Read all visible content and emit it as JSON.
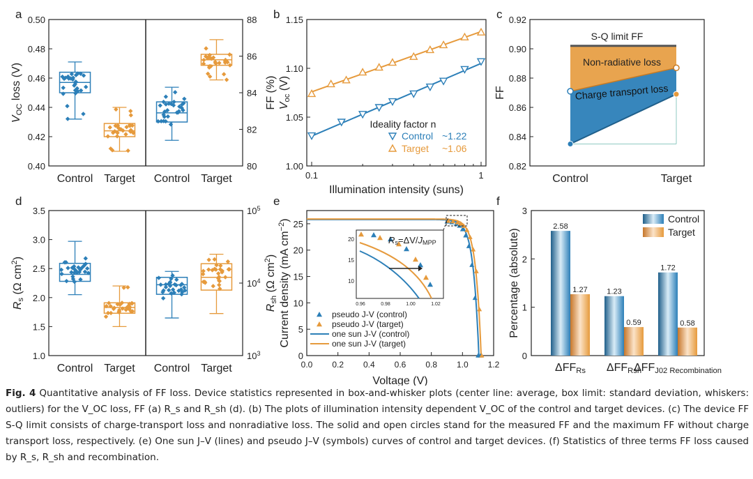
{
  "colors": {
    "control": "#2C7FB8",
    "target": "#E69A3C",
    "loss_nr": "#E69A3C",
    "loss_ct": "#2C7FB8",
    "sq": "#555555"
  },
  "panels": {
    "a": "a",
    "b": "b",
    "c": "c",
    "d": "d",
    "e": "e",
    "f": "f"
  },
  "chart_data": [
    {
      "id": "a",
      "type": "box",
      "ylabel_left": "V_OC loss (V)",
      "ylabel_right": "FF (%)",
      "ylim_left": [
        0.4,
        0.5
      ],
      "yticks_left": [
        "0.40",
        "0.42",
        "0.44",
        "0.46",
        "0.48",
        "0.50"
      ],
      "ylim_right": [
        80,
        88
      ],
      "yticks_right": [
        "80",
        "82",
        "84",
        "86",
        "88"
      ],
      "categories": [
        "Control",
        "Target",
        "Control",
        "Target"
      ],
      "boxes": [
        {
          "axis": "left",
          "group": "control",
          "mean": 0.457,
          "q1": 0.45,
          "q3": 0.464,
          "wlo": 0.432,
          "whi": 0.471
        },
        {
          "axis": "left",
          "group": "target",
          "mean": 0.424,
          "q1": 0.42,
          "q3": 0.429,
          "wlo": 0.41,
          "whi": 0.44
        },
        {
          "axis": "right",
          "group": "control",
          "mean": 82.9,
          "q1": 82.4,
          "q3": 83.5,
          "wlo": 81.4,
          "whi": 84.3
        },
        {
          "axis": "right",
          "group": "target",
          "mean": 85.8,
          "q1": 85.5,
          "q3": 86.1,
          "wlo": 84.7,
          "whi": 86.9
        }
      ]
    },
    {
      "id": "b",
      "type": "scatter+line",
      "xlabel": "Illumination intensity (suns)",
      "ylabel": "V_oc (V)",
      "xscale": "log",
      "xlim": [
        0.1,
        1
      ],
      "xticks": [
        "0.1",
        "1"
      ],
      "ylim": [
        1.0,
        1.15
      ],
      "yticks": [
        "1.00",
        "1.05",
        "1.10",
        "1.15"
      ],
      "legend_title": "Ideality factor n",
      "series": [
        {
          "name": "Control",
          "value_label": "~1.22",
          "group": "control",
          "marker": "triangle-down",
          "x": [
            0.1,
            0.15,
            0.2,
            0.25,
            0.3,
            0.4,
            0.5,
            0.6,
            0.8,
            1.0
          ],
          "y": [
            1.031,
            1.045,
            1.053,
            1.06,
            1.066,
            1.074,
            1.081,
            1.087,
            1.099,
            1.107
          ]
        },
        {
          "name": "Target",
          "value_label": "~1.06",
          "group": "target",
          "marker": "triangle-up",
          "x": [
            0.1,
            0.13,
            0.16,
            0.2,
            0.25,
            0.3,
            0.4,
            0.5,
            0.6,
            0.8,
            1.0
          ],
          "y": [
            1.074,
            1.084,
            1.088,
            1.096,
            1.101,
            1.106,
            1.112,
            1.119,
            1.124,
            1.132,
            1.137
          ]
        }
      ]
    },
    {
      "id": "c",
      "type": "area",
      "ylabel": "FF",
      "ylim": [
        0.82,
        0.92
      ],
      "yticks": [
        "0.82",
        "0.84",
        "0.86",
        "0.88",
        "0.90",
        "0.92"
      ],
      "categories": [
        "Control",
        "Target"
      ],
      "sq_limit": 0.902,
      "sq_label": "S-Q limit FF",
      "max_ff": [
        0.871,
        0.887
      ],
      "measured_ff": [
        0.835,
        0.869
      ],
      "labels": {
        "nonrad": "Non-radiative loss",
        "ct": "Charge transport loss"
      }
    },
    {
      "id": "d",
      "type": "box",
      "ylabel_left": "R_s (Ω cm²)",
      "ylabel_right": "R_sh (Ω cm²)",
      "ylim_left": [
        1.0,
        3.5
      ],
      "yticks_left": [
        "1.0",
        "1.5",
        "2.0",
        "2.5",
        "3.0",
        "3.5"
      ],
      "yscale_right": "log",
      "ylim_right": [
        1000,
        100000
      ],
      "yticks_right": [
        "10^3",
        "10^4",
        "10^5"
      ],
      "categories": [
        "Control",
        "Target",
        "Control",
        "Target"
      ],
      "boxes": [
        {
          "axis": "left",
          "group": "control",
          "mean": 2.4,
          "q1": 2.28,
          "q3": 2.59,
          "wlo": 2.05,
          "whi": 2.97
        },
        {
          "axis": "left",
          "group": "target",
          "mean": 1.83,
          "q1": 1.73,
          "q3": 1.91,
          "wlo": 1.5,
          "whi": 2.2
        },
        {
          "axis": "right",
          "group": "control",
          "mean": 9500,
          "q1": 7000,
          "q3": 12000,
          "wlo": 3300,
          "whi": 14500
        },
        {
          "axis": "right",
          "group": "target",
          "mean": 12000,
          "q1": 8000,
          "q3": 18500,
          "wlo": 3800,
          "whi": 25000
        }
      ]
    },
    {
      "id": "e",
      "type": "line+scatter",
      "xlabel": "Voltage (V)",
      "ylabel": "Current density (mA cm⁻²)",
      "xlim": [
        0,
        1.2
      ],
      "xticks": [
        "0.0",
        "0.2",
        "0.4",
        "0.6",
        "0.8",
        "1.0",
        "1.2"
      ],
      "ylim": [
        0,
        27.5
      ],
      "yticks": [
        "0",
        "5",
        "10",
        "15",
        "20",
        "25"
      ],
      "inset_label": "R_s=ΔV/J_MPP",
      "inset_xticks": [
        "0.96",
        "0.98",
        "1.00",
        "1.02"
      ],
      "inset_yticks": [
        "10",
        "15",
        "20"
      ],
      "legend": [
        "pseudo J-V (control)",
        "pseudo J-V (target)",
        "one sun J-V (control)",
        "one sun J-V (target)"
      ]
    },
    {
      "id": "f",
      "type": "bar",
      "ylabel": "Percentage (absolute)",
      "ylim": [
        0,
        3
      ],
      "yticks": [
        "0",
        "1",
        "2",
        "3"
      ],
      "categories": [
        "ΔFF_Rs",
        "ΔFF_Rsh",
        "ΔFF_J02 Recombination"
      ],
      "series": [
        {
          "name": "Control",
          "group": "control",
          "values": [
            2.58,
            1.23,
            1.72
          ],
          "labels": [
            "2.58",
            "1.23",
            "1.72"
          ]
        },
        {
          "name": "Target",
          "group": "target",
          "values": [
            1.27,
            0.59,
            0.58
          ],
          "labels": [
            "1.27",
            "0.59",
            "0.58"
          ]
        }
      ]
    }
  ],
  "caption": {
    "fig": "Fig. 4",
    "text": " Quantitative analysis of FF loss. Device statistics represented in box-and-whisker plots (center line: average, box limit: standard deviation, whiskers: outliers) for the V_OC loss, FF (a) R_s and R_sh (d). (b) The plots of illumination intensity dependent V_OC of the control and target devices. (c) The device FF S-Q limit consists of charge-transport loss and nonradiative loss. The solid and open circles stand for the measured FF and the maximum FF without charge transport loss, respectively. (e) One sun J–V (lines) and pseudo J–V (symbols) curves of control and target devices. (f) Statistics of three terms FF loss caused by R_s, R_sh and recombination."
  }
}
